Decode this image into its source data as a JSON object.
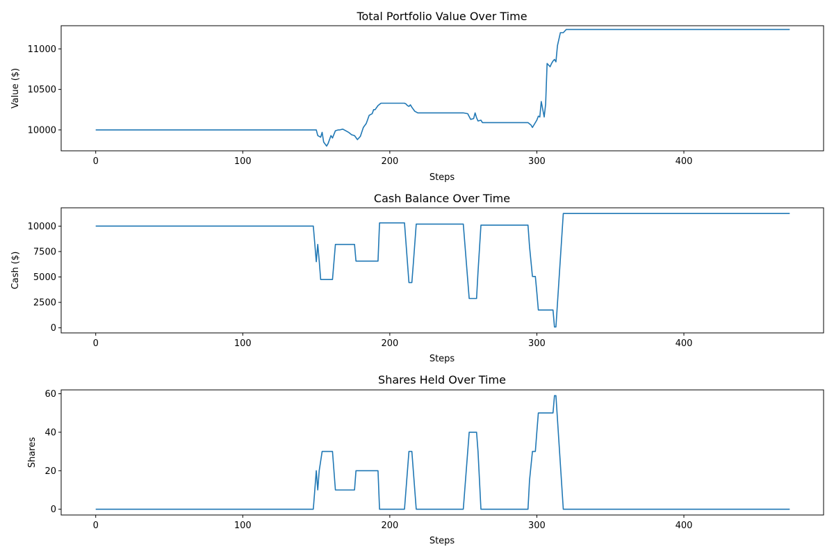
{
  "chart_data": [
    {
      "type": "line",
      "title": "Total Portfolio Value Over Time",
      "xlabel": "Steps",
      "ylabel": "Value ($)",
      "xlim": [
        -23.5,
        495
      ],
      "ylim": [
        9742,
        11286
      ],
      "xticks": [
        0,
        100,
        200,
        300,
        400
      ],
      "yticks": [
        10000,
        10500,
        11000
      ],
      "grid": false,
      "series": [
        {
          "color": "#1f77b4",
          "x": [
            0,
            148,
            150,
            151,
            153,
            154,
            155,
            157,
            158,
            160,
            161,
            163,
            165,
            166,
            168,
            170,
            172,
            174,
            176,
            178,
            180,
            182,
            184,
            186,
            188,
            189,
            190,
            192,
            194,
            196,
            210,
            211,
            212,
            213,
            214,
            215,
            217,
            219,
            220,
            250,
            253,
            255,
            257,
            258,
            259,
            260,
            262,
            263,
            265,
            294,
            296,
            297,
            298,
            300,
            301,
            302,
            303,
            305,
            306,
            307,
            309,
            310,
            311,
            312,
            313,
            314,
            316,
            318,
            320,
            472
          ],
          "y": [
            10000,
            10000,
            10000,
            9930,
            9910,
            9970,
            9850,
            9800,
            9830,
            9930,
            9900,
            9990,
            10000,
            10000,
            10010,
            9990,
            9970,
            9940,
            9930,
            9880,
            9920,
            10030,
            10080,
            10180,
            10200,
            10250,
            10250,
            10300,
            10330,
            10330,
            10330,
            10320,
            10300,
            10290,
            10310,
            10280,
            10230,
            10210,
            10210,
            10210,
            10200,
            10130,
            10140,
            10210,
            10150,
            10110,
            10120,
            10090,
            10090,
            10090,
            10060,
            10030,
            10060,
            10120,
            10170,
            10160,
            10350,
            10160,
            10320,
            10820,
            10780,
            10820,
            10850,
            10870,
            10840,
            11040,
            11200,
            11200,
            11240,
            11240
          ]
        }
      ]
    },
    {
      "type": "line",
      "title": "Cash Balance Over Time",
      "xlabel": "Steps",
      "ylabel": "Cash ($)",
      "xlim": [
        -23.5,
        495
      ],
      "ylim": [
        -500,
        11800
      ],
      "xticks": [
        0,
        100,
        200,
        300,
        400
      ],
      "yticks": [
        0,
        2500,
        5000,
        7500,
        10000
      ],
      "grid": false,
      "series": [
        {
          "color": "#1f77b4",
          "x": [
            0,
            148,
            150,
            151,
            152,
            153,
            154,
            161,
            163,
            164,
            176,
            177,
            178,
            192,
            193,
            194,
            205,
            208,
            210,
            213,
            215,
            216,
            218,
            220,
            240,
            250,
            254,
            256,
            258,
            259,
            260,
            262,
            263,
            264,
            294,
            295,
            297,
            299,
            300,
            301,
            302,
            310,
            311,
            312,
            313,
            318,
            320,
            472
          ],
          "y": [
            10000,
            10000,
            6500,
            8200,
            6600,
            4750,
            4750,
            4750,
            8200,
            8200,
            8200,
            6560,
            6560,
            6560,
            10320,
            10320,
            10320,
            10320,
            10320,
            4450,
            4450,
            6300,
            10200,
            10200,
            10200,
            10200,
            2880,
            2880,
            2880,
            2880,
            5500,
            10100,
            10100,
            10100,
            10100,
            8000,
            5050,
            5050,
            3500,
            1750,
            1750,
            1750,
            1750,
            80,
            80,
            11240,
            11240,
            11240
          ]
        }
      ]
    },
    {
      "type": "line",
      "title": "Shares Held Over Time",
      "xlabel": "Steps",
      "ylabel": "Shares",
      "xlim": [
        -23.5,
        495
      ],
      "ylim": [
        -3,
        62
      ],
      "xticks": [
        0,
        100,
        200,
        300,
        400
      ],
      "yticks": [
        0,
        20,
        40,
        60
      ],
      "grid": false,
      "series": [
        {
          "color": "#1f77b4",
          "x": [
            0,
            148,
            150,
            151,
            152,
            154,
            155,
            161,
            163,
            164,
            176,
            177,
            178,
            192,
            193,
            194,
            210,
            213,
            215,
            216,
            218,
            220,
            250,
            254,
            256,
            258,
            259,
            260,
            262,
            263,
            264,
            294,
            295,
            297,
            299,
            300,
            301,
            302,
            310,
            311,
            312,
            313,
            318,
            320,
            472
          ],
          "y": [
            0,
            0,
            20,
            10,
            20,
            30,
            30,
            30,
            10,
            10,
            10,
            20,
            20,
            20,
            0,
            0,
            0,
            30,
            30,
            20,
            0,
            0,
            0,
            40,
            40,
            40,
            40,
            30,
            0,
            0,
            0,
            0,
            15,
            30,
            30,
            40,
            50,
            50,
            50,
            50,
            59,
            59,
            0,
            0,
            0
          ]
        }
      ]
    }
  ]
}
